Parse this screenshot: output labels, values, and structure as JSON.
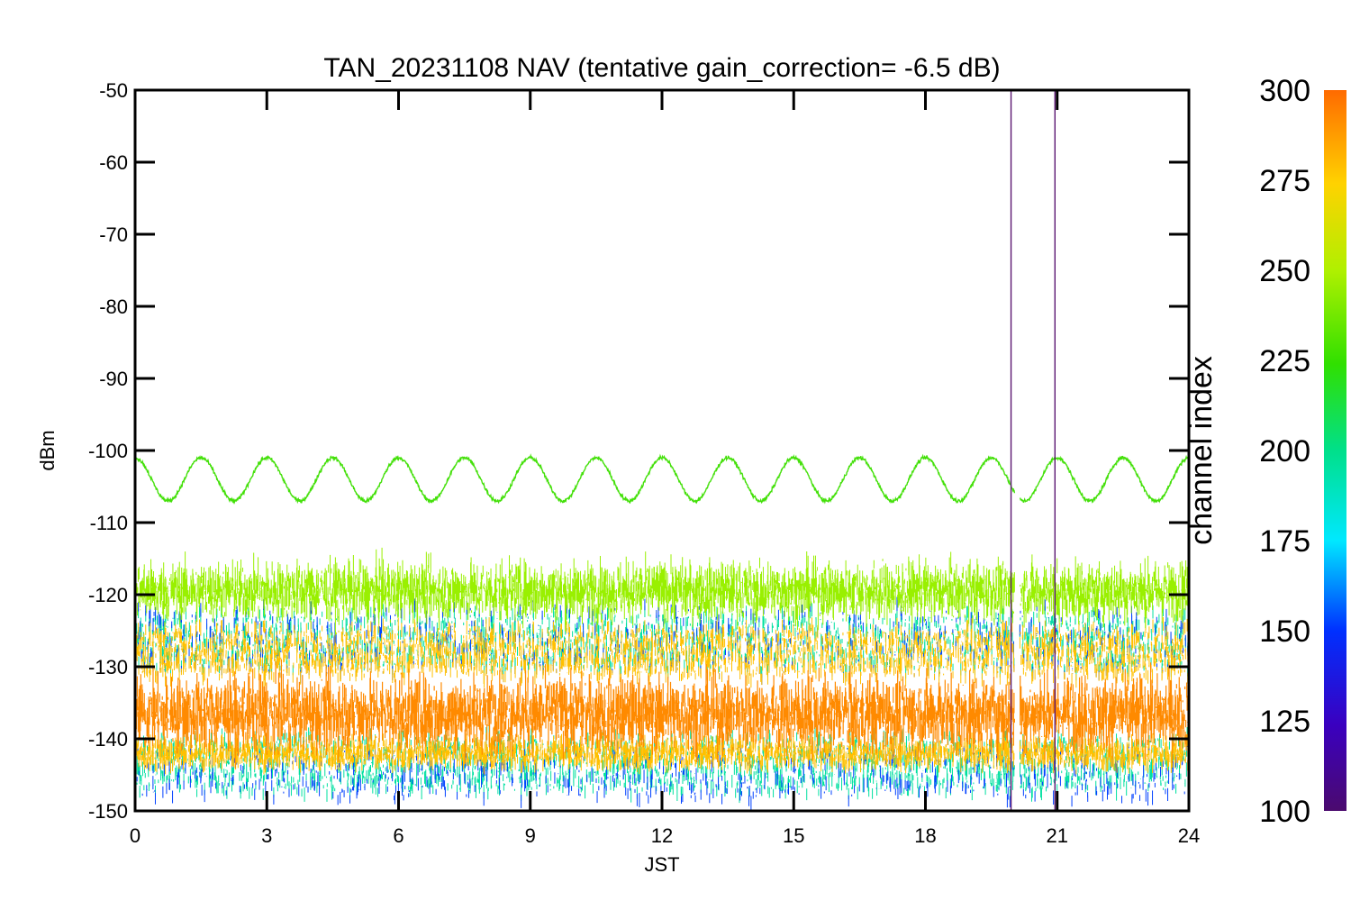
{
  "chart_data": {
    "type": "line",
    "title": "TAN_20231108 NAV (tentative gain_correction= -6.5 dB)",
    "xlabel": "JST",
    "ylabel": "dBm",
    "xlim": [
      0,
      24
    ],
    "ylim": [
      -150,
      -50
    ],
    "xticks": [
      "0",
      "3",
      "6",
      "9",
      "12",
      "15",
      "18",
      "21",
      "24"
    ],
    "xtick_values": [
      0,
      3,
      6,
      9,
      12,
      15,
      18,
      21,
      24
    ],
    "yticks": [
      "-50",
      "-60",
      "-70",
      "-80",
      "-90",
      "-100",
      "-110",
      "-120",
      "-130",
      "-140",
      "-150"
    ],
    "ytick_values": [
      -50,
      -60,
      -70,
      -80,
      -90,
      -100,
      -110,
      -120,
      -130,
      -140,
      -150
    ],
    "colorbar": {
      "label": "channel index",
      "range": [
        100,
        300
      ],
      "ticks": [
        "300",
        "275",
        "250",
        "225",
        "200",
        "175",
        "150",
        "125",
        "100"
      ],
      "tick_values": [
        300,
        275,
        250,
        225,
        200,
        175,
        150,
        125,
        100
      ],
      "colormap": "rainbow (purple-blue-cyan-green-yellow-orange)"
    },
    "series": [
      {
        "channel": 245,
        "color": "#44e00a",
        "description": "sinusoidal line",
        "center_dbm": -104,
        "amplitude_db": 3,
        "period_hours": 1.5
      },
      {
        "channel": 255,
        "color": "#99f000",
        "description": "noise band",
        "mean_dbm": -119.5,
        "spread_db": 4
      },
      {
        "channel": 285,
        "color": "#ff8a00",
        "description": "dense noise band",
        "mean_dbm": -136.5,
        "spread_db": 5
      },
      {
        "channel": 270,
        "color": "#ffc000",
        "description": "noise envelope",
        "range_dbm": [
          -143,
          -125
        ]
      },
      {
        "channel": 200,
        "color": "#00e0a0",
        "description": "noise envelope",
        "range_dbm": [
          -147,
          -123
        ]
      },
      {
        "channel": 140,
        "color": "#0040ff",
        "description": "sparse noise",
        "range_dbm": [
          -148,
          -122
        ]
      }
    ],
    "data_gap_jst": [
      20.03,
      20.15
    ],
    "vertical_markers_jst": [
      19.95,
      20.95
    ],
    "marker_color": "#5a1670"
  }
}
